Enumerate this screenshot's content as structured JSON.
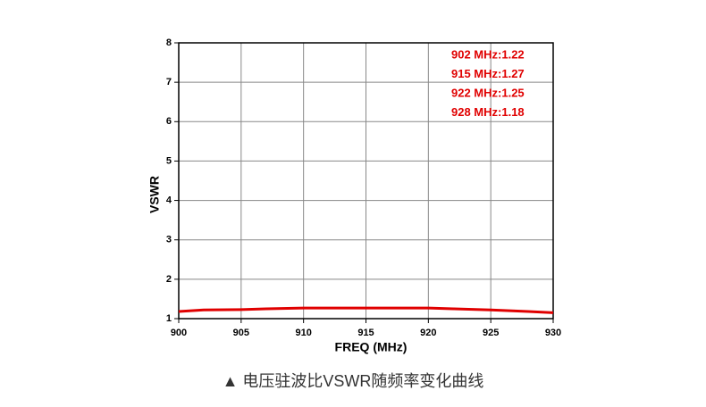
{
  "chart_data": {
    "type": "line",
    "x_label": "FREQ (MHz)",
    "y_label": "VSWR",
    "x": [
      900,
      902,
      905,
      907,
      910,
      915,
      920,
      922,
      925,
      928,
      930
    ],
    "series": [
      {
        "name": "VSWR",
        "color": "#e00000",
        "values": [
          1.18,
          1.22,
          1.23,
          1.25,
          1.27,
          1.27,
          1.27,
          1.25,
          1.22,
          1.18,
          1.15
        ]
      }
    ],
    "xlim": [
      900,
      930
    ],
    "xticks": [
      900,
      905,
      910,
      915,
      920,
      925,
      930
    ],
    "ylim": [
      1,
      8
    ],
    "yticks": [
      1,
      2,
      3,
      4,
      5,
      6,
      7,
      8
    ],
    "grid": true,
    "annotations": [
      "902 MHz:1.22",
      "915 MHz:1.27",
      "922 MHz:1.25",
      "928 MHz:1.18"
    ]
  },
  "caption": "▲ 电压驻波比VSWR随频率变化曲线"
}
